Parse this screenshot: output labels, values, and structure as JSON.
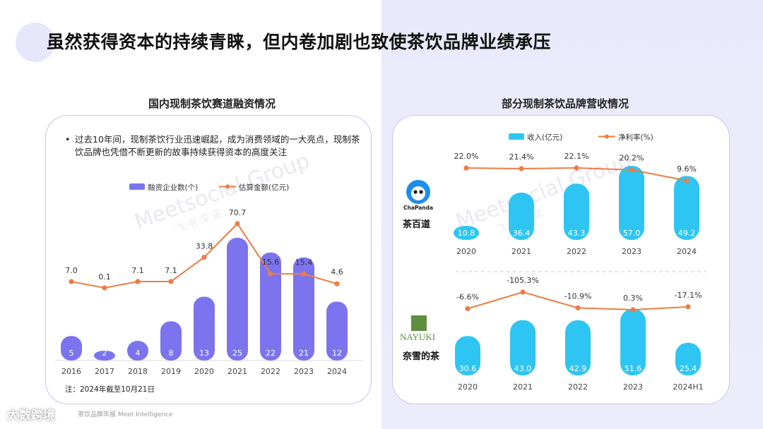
{
  "page": {
    "title": "虽然获得资本的持续青睐，但内卷加剧也致使茶饮品牌业绩承压",
    "left_panel_title": "国内现制茶饮赛道融资情况",
    "right_panel_title": "部分现制茶饮品牌营收情况",
    "bullet_text": "过去10年间，现制茶饮行业迅速崛起，成为消费领域的一大亮点，现制茶饮品牌也凭借不断更新的故事持续获得资本的高度关注",
    "note": "注：2024年截至10月21日",
    "source": "茶饮品牌年报 Meet Intelligence",
    "footer_logo": "大数跨境",
    "watermark_en": "Meetsocial Group",
    "watermark_cn": "飞 书 深 诺"
  },
  "colors": {
    "bar_purple": "#7b74ee",
    "bar_cyan": "#2ec5f2",
    "line_orange": "#ec7d43",
    "card_border": "#c9c5ef"
  },
  "chart_data": [
    {
      "type": "bar",
      "title": "国内现制茶饮赛道融资情况",
      "categories": [
        "2016",
        "2017",
        "2018",
        "2019",
        "2020",
        "2021",
        "2022",
        "2023",
        "2024"
      ],
      "series": [
        {
          "name": "融资企业数(个)",
          "type": "bar",
          "values": [
            5,
            2,
            4,
            8,
            13,
            25,
            22,
            21,
            12
          ]
        },
        {
          "name": "估算金额(亿元)",
          "type": "line",
          "values": [
            7.0,
            0.1,
            7.1,
            7.1,
            33.8,
            70.7,
            15.6,
            15.4,
            4.6
          ]
        }
      ],
      "legend_position": "top-center",
      "grid": false
    },
    {
      "type": "bar",
      "brand": "茶百道",
      "brand_logo": "ChaPanda",
      "categories": [
        "2020",
        "2021",
        "2022",
        "2023",
        "2024"
      ],
      "series": [
        {
          "name": "收入(亿元)",
          "type": "bar",
          "values": [
            10.8,
            36.4,
            43.3,
            57.0,
            49.2
          ]
        },
        {
          "name": "净利率(%)",
          "type": "line",
          "values": [
            22.0,
            21.4,
            22.1,
            20.2,
            9.6
          ]
        }
      ],
      "legend_position": "top-center",
      "grid": false
    },
    {
      "type": "bar",
      "brand": "奈雪的茶",
      "brand_logo": "NAYUKI",
      "categories": [
        "2020",
        "2021",
        "2022",
        "2023",
        "2024H1"
      ],
      "series": [
        {
          "name": "收入(亿元)",
          "type": "bar",
          "values": [
            30.6,
            43.0,
            42.9,
            51.6,
            25.4
          ]
        },
        {
          "name": "净利率(%)",
          "type": "line",
          "values": [
            -6.6,
            -105.3,
            -10.9,
            0.3,
            -17.1
          ]
        }
      ],
      "grid": false
    }
  ]
}
